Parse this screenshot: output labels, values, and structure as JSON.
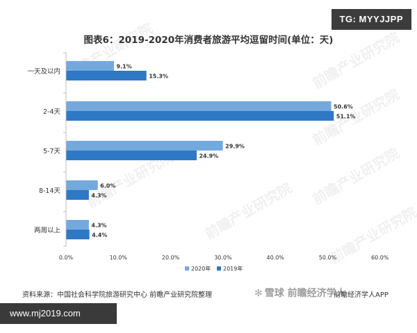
{
  "tg_badge": "TG: MYYJJPP",
  "chart_data": {
    "type": "bar",
    "orientation": "horizontal",
    "title": "图表6：2019-2020年消费者旅游平均逗留时间(单位：天)",
    "categories": [
      "一天及以内",
      "2-4天",
      "5-7天",
      "8-14天",
      "两周以上"
    ],
    "series": [
      {
        "name": "2020年",
        "values": [
          9.1,
          50.6,
          29.9,
          6.0,
          4.3
        ],
        "labels": [
          "9.1%",
          "50.6%",
          "29.9%",
          "6.0%",
          "4.3%"
        ],
        "color": "#74a9de"
      },
      {
        "name": "2019年",
        "values": [
          15.3,
          51.1,
          24.9,
          4.3,
          4.4
        ],
        "labels": [
          "15.3%",
          "51.1%",
          "24.9%",
          "4.3%",
          "4.4%"
        ],
        "color": "#2f78c4"
      }
    ],
    "xlim": [
      0,
      60
    ],
    "xticks": [
      0,
      10,
      20,
      30,
      40,
      50,
      60
    ],
    "xtick_labels": [
      "0.0%",
      "10.0%",
      "20.0%",
      "30.0%",
      "40.0%",
      "50.0%",
      "60.0%"
    ],
    "grid": false,
    "legend_position": "bottom"
  },
  "source": "资料来源：中国社会科学院旅游研究中心 前瞻产业研究院整理",
  "site_badge": "www.mj2019.com",
  "overlay": {
    "logo_text": "雪球",
    "logo_mid": "前瞻经济学人",
    "tail": "前瞻经济学人APP"
  },
  "watermark": "前瞻产业研究院"
}
